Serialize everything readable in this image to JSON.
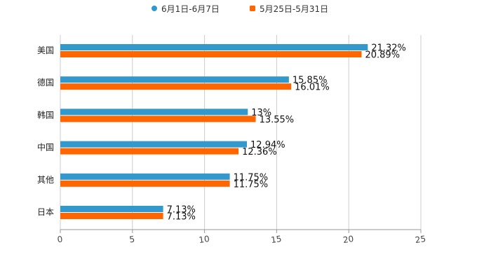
{
  "chart_data": {
    "type": "bar",
    "orientation": "horizontal",
    "categories": [
      "美国",
      "德国",
      "韩国",
      "中国",
      "其他",
      "日本"
    ],
    "series": [
      {
        "name": "6月1日-6月7日",
        "color": "#3399cc",
        "values": [
          21.32,
          15.85,
          13,
          12.94,
          11.75,
          7.13
        ],
        "labels": [
          "21.32%",
          "15.85%",
          "13%",
          "12.94%",
          "11.75%",
          "7.13%"
        ]
      },
      {
        "name": "5月25日-5月31日",
        "color": "#ff6600",
        "values": [
          20.89,
          16.01,
          13.55,
          12.36,
          11.75,
          7.13
        ],
        "labels": [
          "20.89%",
          "16.01%",
          "13.55%",
          "12.36%",
          "11.75%",
          "7.13%"
        ]
      }
    ],
    "xlim": [
      0,
      25
    ],
    "xticks": [
      "0",
      "5",
      "10",
      "15",
      "20",
      "25"
    ],
    "grid": true,
    "legend_position": "top-center",
    "title": "",
    "xlabel": "",
    "ylabel": ""
  }
}
